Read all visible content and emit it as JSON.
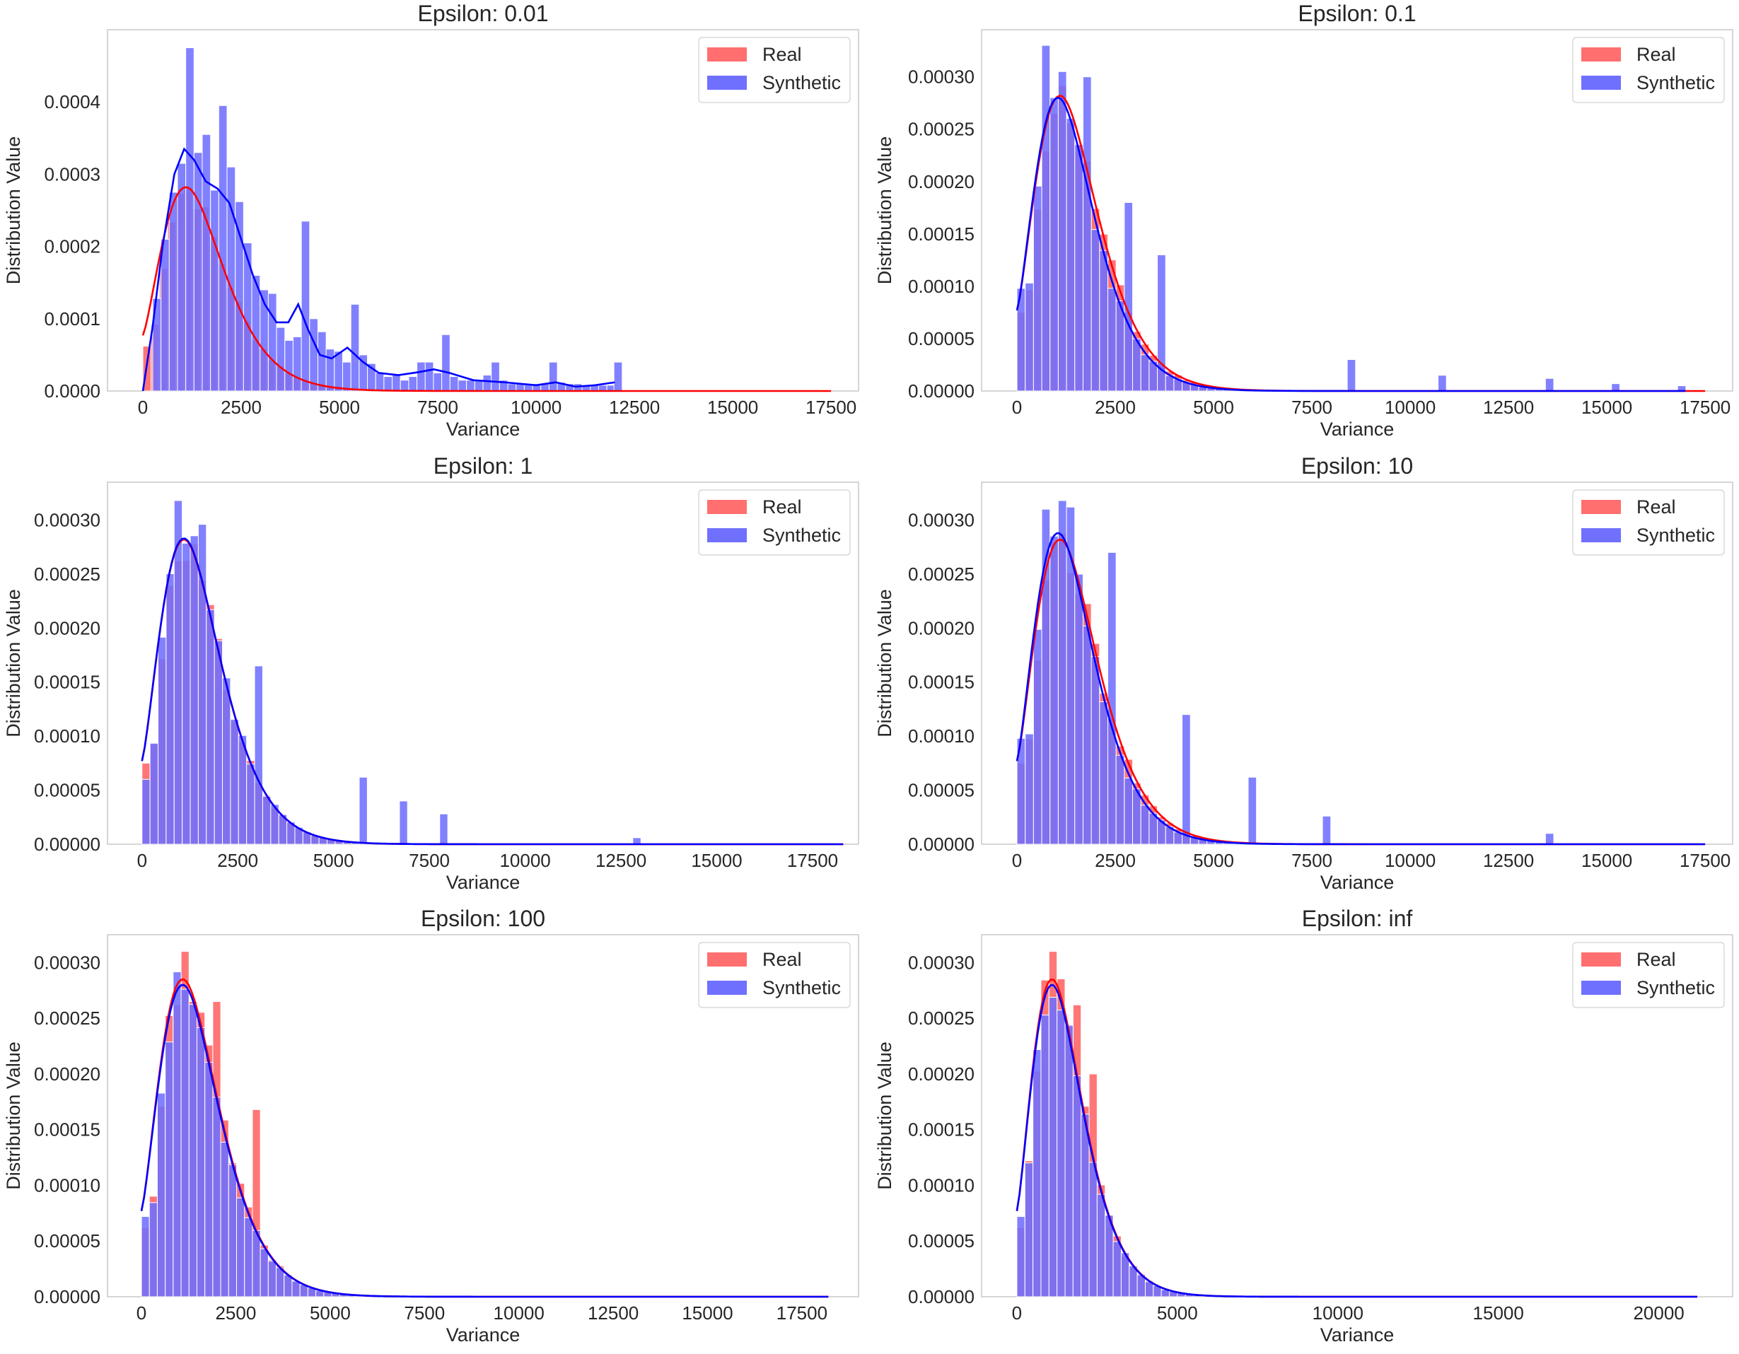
{
  "figure": {
    "description_free": true
  },
  "colors": {
    "real": "#ff0000",
    "synthetic": "#0000ff",
    "real_fill": "#ff6f6f",
    "synthetic_fill": "#7070ff",
    "axis": "#c8c8c8",
    "text": "#262626"
  },
  "legend": {
    "real": "Real",
    "synthetic": "Synthetic"
  },
  "labels": {
    "xlabel": "Variance",
    "ylabel": "Distribution Value"
  },
  "chart_data": [
    {
      "type": "histogram",
      "title": "Epsilon: 0.01",
      "xlabel": "Variance",
      "ylabel": "Distribution Value",
      "xlim": [
        -900,
        18200
      ],
      "ylim": [
        0,
        0.0005
      ],
      "xticks": [
        0,
        2500,
        5000,
        7500,
        10000,
        12500,
        15000,
        17500
      ],
      "xtick_labels": [
        "0",
        "2500",
        "5000",
        "7500",
        "10000",
        "12500",
        "15000",
        "17500"
      ],
      "yticks": [
        0,
        0.0001,
        0.0002,
        0.0003,
        0.0004
      ],
      "ytick_labels": [
        "0.0000",
        "0.0001",
        "0.0002",
        "0.0003",
        "0.0004"
      ],
      "legend": "top-right",
      "series": [
        {
          "name": "Real",
          "bin_width": 210,
          "x_start": 0,
          "x_end": 17500,
          "peak_x": 1100,
          "peak_y": 0.000282,
          "shape": 2.1,
          "first_bin": 6.2e-05,
          "kde_start": 7.7e-05
        },
        {
          "name": "Synthetic",
          "bin_width": 210,
          "x_start": 250,
          "x_end": 12150,
          "bins": [
            [
              250,
              0.000128
            ],
            [
              460,
              0.00021
            ],
            [
              670,
              0.000275
            ],
            [
              880,
              0.000315
            ],
            [
              1090,
              0.000475
            ],
            [
              1300,
              0.00033
            ],
            [
              1510,
              0.000355
            ],
            [
              1720,
              0.000278
            ],
            [
              1930,
              0.000395
            ],
            [
              2140,
              0.00031
            ],
            [
              2350,
              0.000262
            ],
            [
              2560,
              0.000205
            ],
            [
              2770,
              0.00016
            ],
            [
              2980,
              0.00014
            ],
            [
              3190,
              0.000135
            ],
            [
              3400,
              8.8e-05
            ],
            [
              3610,
              7e-05
            ],
            [
              3820,
              7.5e-05
            ],
            [
              4030,
              0.000235
            ],
            [
              4240,
              0.0001
            ],
            [
              4450,
              8.2e-05
            ],
            [
              4660,
              5.8e-05
            ],
            [
              4870,
              5.5e-05
            ],
            [
              5080,
              4e-05
            ],
            [
              5290,
              0.00012
            ],
            [
              5500,
              5e-05
            ],
            [
              5710,
              3.8e-05
            ],
            [
              5920,
              2.5e-05
            ],
            [
              6130,
              2e-05
            ],
            [
              6340,
              2.2e-05
            ],
            [
              6550,
              1.5e-05
            ],
            [
              6760,
              2e-05
            ],
            [
              6970,
              4e-05
            ],
            [
              7180,
              4e-05
            ],
            [
              7390,
              2.5e-05
            ],
            [
              7600,
              7.8e-05
            ],
            [
              7810,
              2e-05
            ],
            [
              8020,
              1.5e-05
            ],
            [
              8230,
              1.5e-05
            ],
            [
              8440,
              1.5e-05
            ],
            [
              8650,
              2.2e-05
            ],
            [
              8860,
              4e-05
            ],
            [
              9070,
              1.5e-05
            ],
            [
              9280,
              1e-05
            ],
            [
              9490,
              1e-05
            ],
            [
              9700,
              1e-05
            ],
            [
              9910,
              1e-05
            ],
            [
              10120,
              1e-05
            ],
            [
              10330,
              4e-05
            ],
            [
              10540,
              1.2e-05
            ],
            [
              10750,
              1e-05
            ],
            [
              10960,
              1e-05
            ],
            [
              11170,
              8e-06
            ],
            [
              11380,
              8e-06
            ],
            [
              11590,
              8e-06
            ],
            [
              11800,
              8e-06
            ],
            [
              11980,
              4e-05
            ]
          ],
          "kde": [
            [
              0,
              0.0
            ],
            [
              250,
              9e-05
            ],
            [
              500,
              0.0002
            ],
            [
              800,
              0.0003
            ],
            [
              1050,
              0.000335
            ],
            [
              1300,
              0.00032
            ],
            [
              1600,
              0.00029
            ],
            [
              1900,
              0.00028
            ],
            [
              2200,
              0.00026
            ],
            [
              2500,
              0.00021
            ],
            [
              2800,
              0.00016
            ],
            [
              3100,
              0.00012
            ],
            [
              3400,
              9.5e-05
            ],
            [
              3700,
              9.5e-05
            ],
            [
              3950,
              0.00012
            ],
            [
              4200,
              8.5e-05
            ],
            [
              4500,
              5e-05
            ],
            [
              4800,
              4.5e-05
            ],
            [
              5200,
              6e-05
            ],
            [
              5600,
              4e-05
            ],
            [
              6000,
              2.5e-05
            ],
            [
              6500,
              2.2e-05
            ],
            [
              7000,
              2.6e-05
            ],
            [
              7400,
              3e-05
            ],
            [
              7800,
              2.5e-05
            ],
            [
              8400,
              1.5e-05
            ],
            [
              9200,
              1.2e-05
            ],
            [
              10000,
              8e-06
            ],
            [
              10500,
              1.2e-05
            ],
            [
              11000,
              6e-06
            ],
            [
              11500,
              8e-06
            ],
            [
              12000,
              1.2e-05
            ]
          ]
        }
      ]
    },
    {
      "type": "histogram",
      "title": "Epsilon: 0.1",
      "xlabel": "Variance",
      "ylabel": "Distribution Value",
      "xlim": [
        -900,
        18200
      ],
      "ylim": [
        0,
        0.000345
      ],
      "xticks": [
        0,
        2500,
        5000,
        7500,
        10000,
        12500,
        15000,
        17500
      ],
      "xtick_labels": [
        "0",
        "2500",
        "5000",
        "7500",
        "10000",
        "12500",
        "15000",
        "17500"
      ],
      "yticks": [
        0,
        5e-05,
        0.0001,
        0.00015,
        0.0002,
        0.00025,
        0.0003
      ],
      "ytick_labels": [
        "0.00000",
        "0.00005",
        "0.00010",
        "0.00015",
        "0.00020",
        "0.00025",
        "0.00030"
      ],
      "legend": "top-right",
      "series": [
        {
          "name": "Real",
          "bin_width": 210,
          "x_start": 0,
          "x_end": 17500,
          "peak_x": 1100,
          "peak_y": 0.000282,
          "shape": 2.1,
          "first_bin": 7.5e-05,
          "kde_start": 7.7e-05,
          "seed": 11
        },
        {
          "name": "Synthetic",
          "bin_width": 210,
          "x_start": 0,
          "x_end": 17000,
          "peak_x": 1050,
          "peak_y": 0.00028,
          "shape": 2.1,
          "first_bin": 9.8e-05,
          "kde_start": 7.7e-05,
          "seed": 23,
          "spikes": [
            [
              560,
              0.00033
            ],
            [
              980,
              0.000305
            ],
            [
              1610,
              0.0003
            ],
            [
              2660,
              0.00018
            ],
            [
              3500,
              0.00013
            ],
            [
              8400,
              3e-05
            ],
            [
              10700,
              1.5e-05
            ],
            [
              13440,
              1.2e-05
            ],
            [
              15120,
              7e-06
            ],
            [
              16980,
              5e-06
            ]
          ]
        }
      ]
    },
    {
      "type": "histogram",
      "title": "Epsilon: 1",
      "xlabel": "Variance",
      "ylabel": "Distribution Value",
      "xlim": [
        -900,
        18700
      ],
      "ylim": [
        0,
        0.000335
      ],
      "xticks": [
        0,
        2500,
        5000,
        7500,
        10000,
        12500,
        15000,
        17500
      ],
      "xtick_labels": [
        "0",
        "2500",
        "5000",
        "7500",
        "10000",
        "12500",
        "15000",
        "17500"
      ],
      "yticks": [
        0,
        5e-05,
        0.0001,
        0.00015,
        0.0002,
        0.00025,
        0.0003
      ],
      "ytick_labels": [
        "0.00000",
        "0.00005",
        "0.00010",
        "0.00015",
        "0.00020",
        "0.00025",
        "0.00030"
      ],
      "legend": "top-right",
      "series": [
        {
          "name": "Real",
          "bin_width": 210,
          "x_start": 0,
          "x_end": 18300,
          "peak_x": 1100,
          "peak_y": 0.000282,
          "shape": 2.1,
          "first_bin": 7.5e-05,
          "kde_start": 7.7e-05,
          "seed": 31
        },
        {
          "name": "Synthetic",
          "bin_width": 210,
          "x_start": 0,
          "x_end": 18300,
          "peak_x": 1100,
          "peak_y": 0.000283,
          "shape": 2.1,
          "first_bin": 6e-05,
          "kde_start": 7.7e-05,
          "seed": 37,
          "spikes": [
            [
              770,
              0.000318
            ],
            [
              1400,
              0.000296
            ],
            [
              2870,
              0.000165
            ],
            [
              5700,
              6.2e-05
            ],
            [
              6650,
              4e-05
            ],
            [
              7860,
              2.8e-05
            ],
            [
              12900,
              6e-06
            ]
          ]
        }
      ]
    },
    {
      "type": "histogram",
      "title": "Epsilon: 10",
      "xlabel": "Variance",
      "ylabel": "Distribution Value",
      "xlim": [
        -900,
        18200
      ],
      "ylim": [
        0,
        0.000335
      ],
      "xticks": [
        0,
        2500,
        5000,
        7500,
        10000,
        12500,
        15000,
        17500
      ],
      "xtick_labels": [
        "0",
        "2500",
        "5000",
        "7500",
        "10000",
        "12500",
        "15000",
        "17500"
      ],
      "yticks": [
        0,
        5e-05,
        0.0001,
        0.00015,
        0.0002,
        0.00025,
        0.0003
      ],
      "ytick_labels": [
        "0.00000",
        "0.00005",
        "0.00010",
        "0.00015",
        "0.00020",
        "0.00025",
        "0.00030"
      ],
      "legend": "top-right",
      "series": [
        {
          "name": "Real",
          "bin_width": 210,
          "x_start": 0,
          "x_end": 17500,
          "peak_x": 1100,
          "peak_y": 0.000282,
          "shape": 2.1,
          "first_bin": 7.5e-05,
          "kde_start": 7.7e-05,
          "seed": 41
        },
        {
          "name": "Synthetic",
          "bin_width": 210,
          "x_start": 0,
          "x_end": 17500,
          "peak_x": 1050,
          "peak_y": 0.000288,
          "shape": 2.1,
          "first_bin": 9.8e-05,
          "kde_start": 7.7e-05,
          "seed": 43,
          "spikes": [
            [
              560,
              0.00031
            ],
            [
              980,
              0.000318
            ],
            [
              1190,
              0.000312
            ],
            [
              2240,
              0.00027
            ],
            [
              4200,
              0.00012
            ],
            [
              5900,
              6.2e-05
            ],
            [
              7800,
              2.6e-05
            ],
            [
              13440,
              1e-05
            ]
          ]
        }
      ]
    },
    {
      "type": "histogram",
      "title": "Epsilon: 100",
      "xlabel": "Variance",
      "ylabel": "Distribution Value",
      "xlim": [
        -900,
        19000
      ],
      "ylim": [
        0,
        0.000325
      ],
      "xticks": [
        0,
        2500,
        5000,
        7500,
        10000,
        12500,
        15000,
        17500
      ],
      "xtick_labels": [
        "0",
        "2500",
        "5000",
        "7500",
        "10000",
        "12500",
        "15000",
        "17500"
      ],
      "yticks": [
        0,
        5e-05,
        0.0001,
        0.00015,
        0.0002,
        0.00025,
        0.0003
      ],
      "ytick_labels": [
        "0.00000",
        "0.00005",
        "0.00010",
        "0.00015",
        "0.00020",
        "0.00025",
        "0.00030"
      ],
      "legend": "top-right",
      "series": [
        {
          "name": "Real",
          "bin_width": 210,
          "x_start": 0,
          "x_end": 18200,
          "peak_x": 1100,
          "peak_y": 0.000285,
          "shape": 2.1,
          "first_bin": 6.2e-05,
          "kde_start": 7.7e-05,
          "seed": 51,
          "spikes": [
            [
              980,
              0.00031
            ],
            [
              1820,
              0.000265
            ],
            [
              2870,
              0.000168
            ]
          ]
        },
        {
          "name": "Synthetic",
          "bin_width": 210,
          "x_start": 0,
          "x_end": 18200,
          "peak_x": 1100,
          "peak_y": 0.00028,
          "shape": 2.1,
          "first_bin": 7.2e-05,
          "kde_start": 7.7e-05,
          "seed": 53
        }
      ]
    },
    {
      "type": "histogram",
      "title": "Epsilon: inf",
      "xlabel": "Variance",
      "ylabel": "Distribution Value",
      "xlim": [
        -1100,
        22300
      ],
      "ylim": [
        0,
        0.000325
      ],
      "xticks": [
        0,
        5000,
        10000,
        15000,
        20000
      ],
      "xtick_labels": [
        "0",
        "5000",
        "10000",
        "15000",
        "20000"
      ],
      "yticks": [
        0,
        5e-05,
        0.0001,
        0.00015,
        0.0002,
        0.00025,
        0.0003
      ],
      "ytick_labels": [
        "0.00000",
        "0.00005",
        "0.00010",
        "0.00015",
        "0.00020",
        "0.00025",
        "0.00030"
      ],
      "legend": "top-right",
      "series": [
        {
          "name": "Real",
          "bin_width": 250,
          "x_start": 0,
          "x_end": 21200,
          "peak_x": 1100,
          "peak_y": 0.000285,
          "shape": 2.1,
          "first_bin": 6.2e-05,
          "kde_start": 7.7e-05,
          "seed": 61,
          "spikes": [
            [
              1000,
              0.00031
            ],
            [
              1750,
              0.000262
            ],
            [
              2250,
              0.0002
            ]
          ]
        },
        {
          "name": "Synthetic",
          "bin_width": 250,
          "x_start": 0,
          "x_end": 21200,
          "peak_x": 1100,
          "peak_y": 0.00028,
          "shape": 2.1,
          "first_bin": 7.2e-05,
          "kde_start": 7.7e-05,
          "seed": 67
        }
      ]
    }
  ]
}
